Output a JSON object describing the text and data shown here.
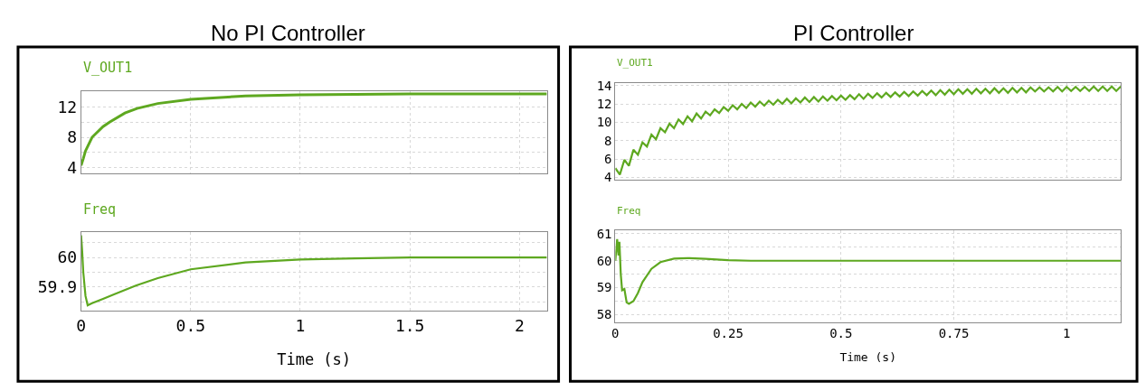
{
  "chart_data": [
    {
      "type": "line",
      "title": "No PI Controller",
      "xlim": [
        0,
        2.125
      ],
      "xticks": [
        0,
        0.5,
        1,
        1.5,
        2
      ],
      "ylim": [
        3.3,
        14.1
      ],
      "yticks": [
        4,
        {
          "value": 6,
          "label": null
        },
        8,
        {
          "value": 10,
          "label": null
        },
        12,
        {
          "value": 14,
          "label": null
        }
      ],
      "tick_labels": "y",
      "grid": true,
      "series": [
        {
          "name": "V_OUT1",
          "color": "#5ea820",
          "x": [
            0,
            0.01,
            0.02,
            0.05,
            0.1,
            0.13,
            0.2,
            0.255,
            0.35,
            0.5,
            0.75,
            1.0,
            1.5,
            2.125
          ],
          "values": [
            4.3,
            5.2,
            6.2,
            8.0,
            9.4,
            10.0,
            11.2,
            11.8,
            12.45,
            13.0,
            13.45,
            13.6,
            13.7,
            13.7
          ]
        }
      ]
    },
    {
      "type": "line",
      "xlabel": "Time (s)",
      "xlim": [
        0,
        2.125
      ],
      "xticks": [
        0,
        0.5,
        1,
        1.5,
        2
      ],
      "ylim": [
        59.82,
        60.086
      ],
      "yticks": [
        {
          "value": 59.85,
          "label": null
        },
        59.9,
        {
          "value": 59.95,
          "label": null
        },
        60,
        {
          "value": 60.05,
          "label": null
        }
      ],
      "grid": true,
      "series": [
        {
          "name": "Freq",
          "color": "#5ea820",
          "x": [
            0,
            0.005,
            0.01,
            0.02,
            0.03,
            0.05,
            0.1,
            0.15,
            0.25,
            0.35,
            0.5,
            0.75,
            1.0,
            1.25,
            1.5,
            2.125
          ],
          "values": [
            60.075,
            60.02,
            59.95,
            59.87,
            59.838,
            59.845,
            59.86,
            59.875,
            59.905,
            59.93,
            59.96,
            59.983,
            59.993,
            59.997,
            60.0,
            60.0
          ]
        }
      ]
    },
    {
      "type": "line",
      "title": "PI Controller",
      "xlim": [
        0,
        1.12
      ],
      "xticks": [
        0,
        0.25,
        0.5,
        0.75,
        1
      ],
      "ylim": [
        3.7,
        14.27
      ],
      "yticks": [
        4,
        6,
        8,
        10,
        12,
        14
      ],
      "tick_labels": "y",
      "grid": true,
      "series": [
        {
          "name": "V_OUT1",
          "color": "#5ea820",
          "x": [
            0,
            0.01,
            0.02,
            0.03,
            0.04,
            0.05,
            0.06,
            0.07,
            0.08,
            0.09,
            0.1,
            0.11,
            0.12,
            0.13,
            0.14,
            0.15,
            0.16,
            0.17,
            0.18,
            0.19,
            0.2,
            0.21,
            0.22,
            0.23,
            0.24,
            0.25,
            0.26,
            0.27,
            0.28,
            0.29,
            0.3,
            0.31,
            0.32,
            0.33,
            0.34,
            0.35,
            0.36,
            0.37,
            0.38,
            0.39,
            0.4,
            0.41,
            0.42,
            0.43,
            0.44,
            0.45,
            0.46,
            0.47,
            0.48,
            0.49,
            0.5,
            0.51,
            0.52,
            0.53,
            0.54,
            0.55,
            0.56,
            0.57,
            0.58,
            0.59,
            0.6,
            0.61,
            0.62,
            0.63,
            0.64,
            0.65,
            0.66,
            0.67,
            0.68,
            0.69,
            0.7,
            0.71,
            0.72,
            0.73,
            0.74,
            0.75,
            0.76,
            0.77,
            0.78,
            0.79,
            0.8,
            0.81,
            0.82,
            0.83,
            0.84,
            0.85,
            0.86,
            0.87,
            0.88,
            0.89,
            0.9,
            0.91,
            0.92,
            0.93,
            0.94,
            0.95,
            0.96,
            0.97,
            0.98,
            0.99,
            1.0,
            1.01,
            1.02,
            1.03,
            1.04,
            1.05,
            1.06,
            1.07,
            1.08,
            1.09,
            1.1,
            1.11,
            1.12
          ],
          "values": [
            5.0,
            4.3,
            5.9,
            5.25,
            7.0,
            6.45,
            7.8,
            7.35,
            8.65,
            8.15,
            9.35,
            8.9,
            9.85,
            9.35,
            10.3,
            9.8,
            10.65,
            10.1,
            10.95,
            10.4,
            11.15,
            10.75,
            11.4,
            11.0,
            11.65,
            11.25,
            11.85,
            11.4,
            12.0,
            11.55,
            12.15,
            11.7,
            12.25,
            11.8,
            12.35,
            11.9,
            12.45,
            12.0,
            12.55,
            12.05,
            12.6,
            12.15,
            12.7,
            12.2,
            12.75,
            12.25,
            12.8,
            12.35,
            12.85,
            12.4,
            12.9,
            12.45,
            12.95,
            12.5,
            13.05,
            12.55,
            13.1,
            12.65,
            13.15,
            12.7,
            13.2,
            12.75,
            13.25,
            12.8,
            13.3,
            12.85,
            13.35,
            12.9,
            13.4,
            12.95,
            13.45,
            12.95,
            13.5,
            13.0,
            13.55,
            13.05,
            13.6,
            13.1,
            13.6,
            13.1,
            13.65,
            13.15,
            13.65,
            13.15,
            13.7,
            13.2,
            13.7,
            13.2,
            13.75,
            13.25,
            13.75,
            13.25,
            13.8,
            13.35,
            13.8,
            13.35,
            13.8,
            13.35,
            13.85,
            13.35,
            13.85,
            13.4,
            13.85,
            13.4,
            13.85,
            13.4,
            13.9,
            13.4,
            13.9,
            13.4,
            13.9,
            13.4,
            13.9
          ]
        }
      ]
    },
    {
      "type": "line",
      "xlabel": "Time (s)",
      "xlim": [
        0,
        1.12
      ],
      "xticks": [
        0,
        0.25,
        0.5,
        0.75,
        1
      ],
      "ylim": [
        57.72,
        61.13
      ],
      "yticks": [
        58,
        {
          "value": 58.5,
          "label": null
        },
        59,
        {
          "value": 59.5,
          "label": null
        },
        60,
        {
          "value": 60.5,
          "label": null
        },
        61
      ],
      "grid": true,
      "series": [
        {
          "name": "Freq",
          "color": "#5ea820",
          "x": [
            0,
            0.004,
            0.007,
            0.009,
            0.012,
            0.015,
            0.02,
            0.025,
            0.03,
            0.04,
            0.05,
            0.06,
            0.08,
            0.1,
            0.13,
            0.16,
            0.2,
            0.25,
            0.3,
            1.12
          ],
          "values": [
            60.0,
            60.8,
            60.2,
            60.7,
            59.5,
            58.9,
            58.95,
            58.45,
            58.4,
            58.5,
            58.8,
            59.2,
            59.7,
            59.95,
            60.08,
            60.1,
            60.07,
            60.02,
            60.0,
            60.0
          ]
        }
      ]
    }
  ]
}
